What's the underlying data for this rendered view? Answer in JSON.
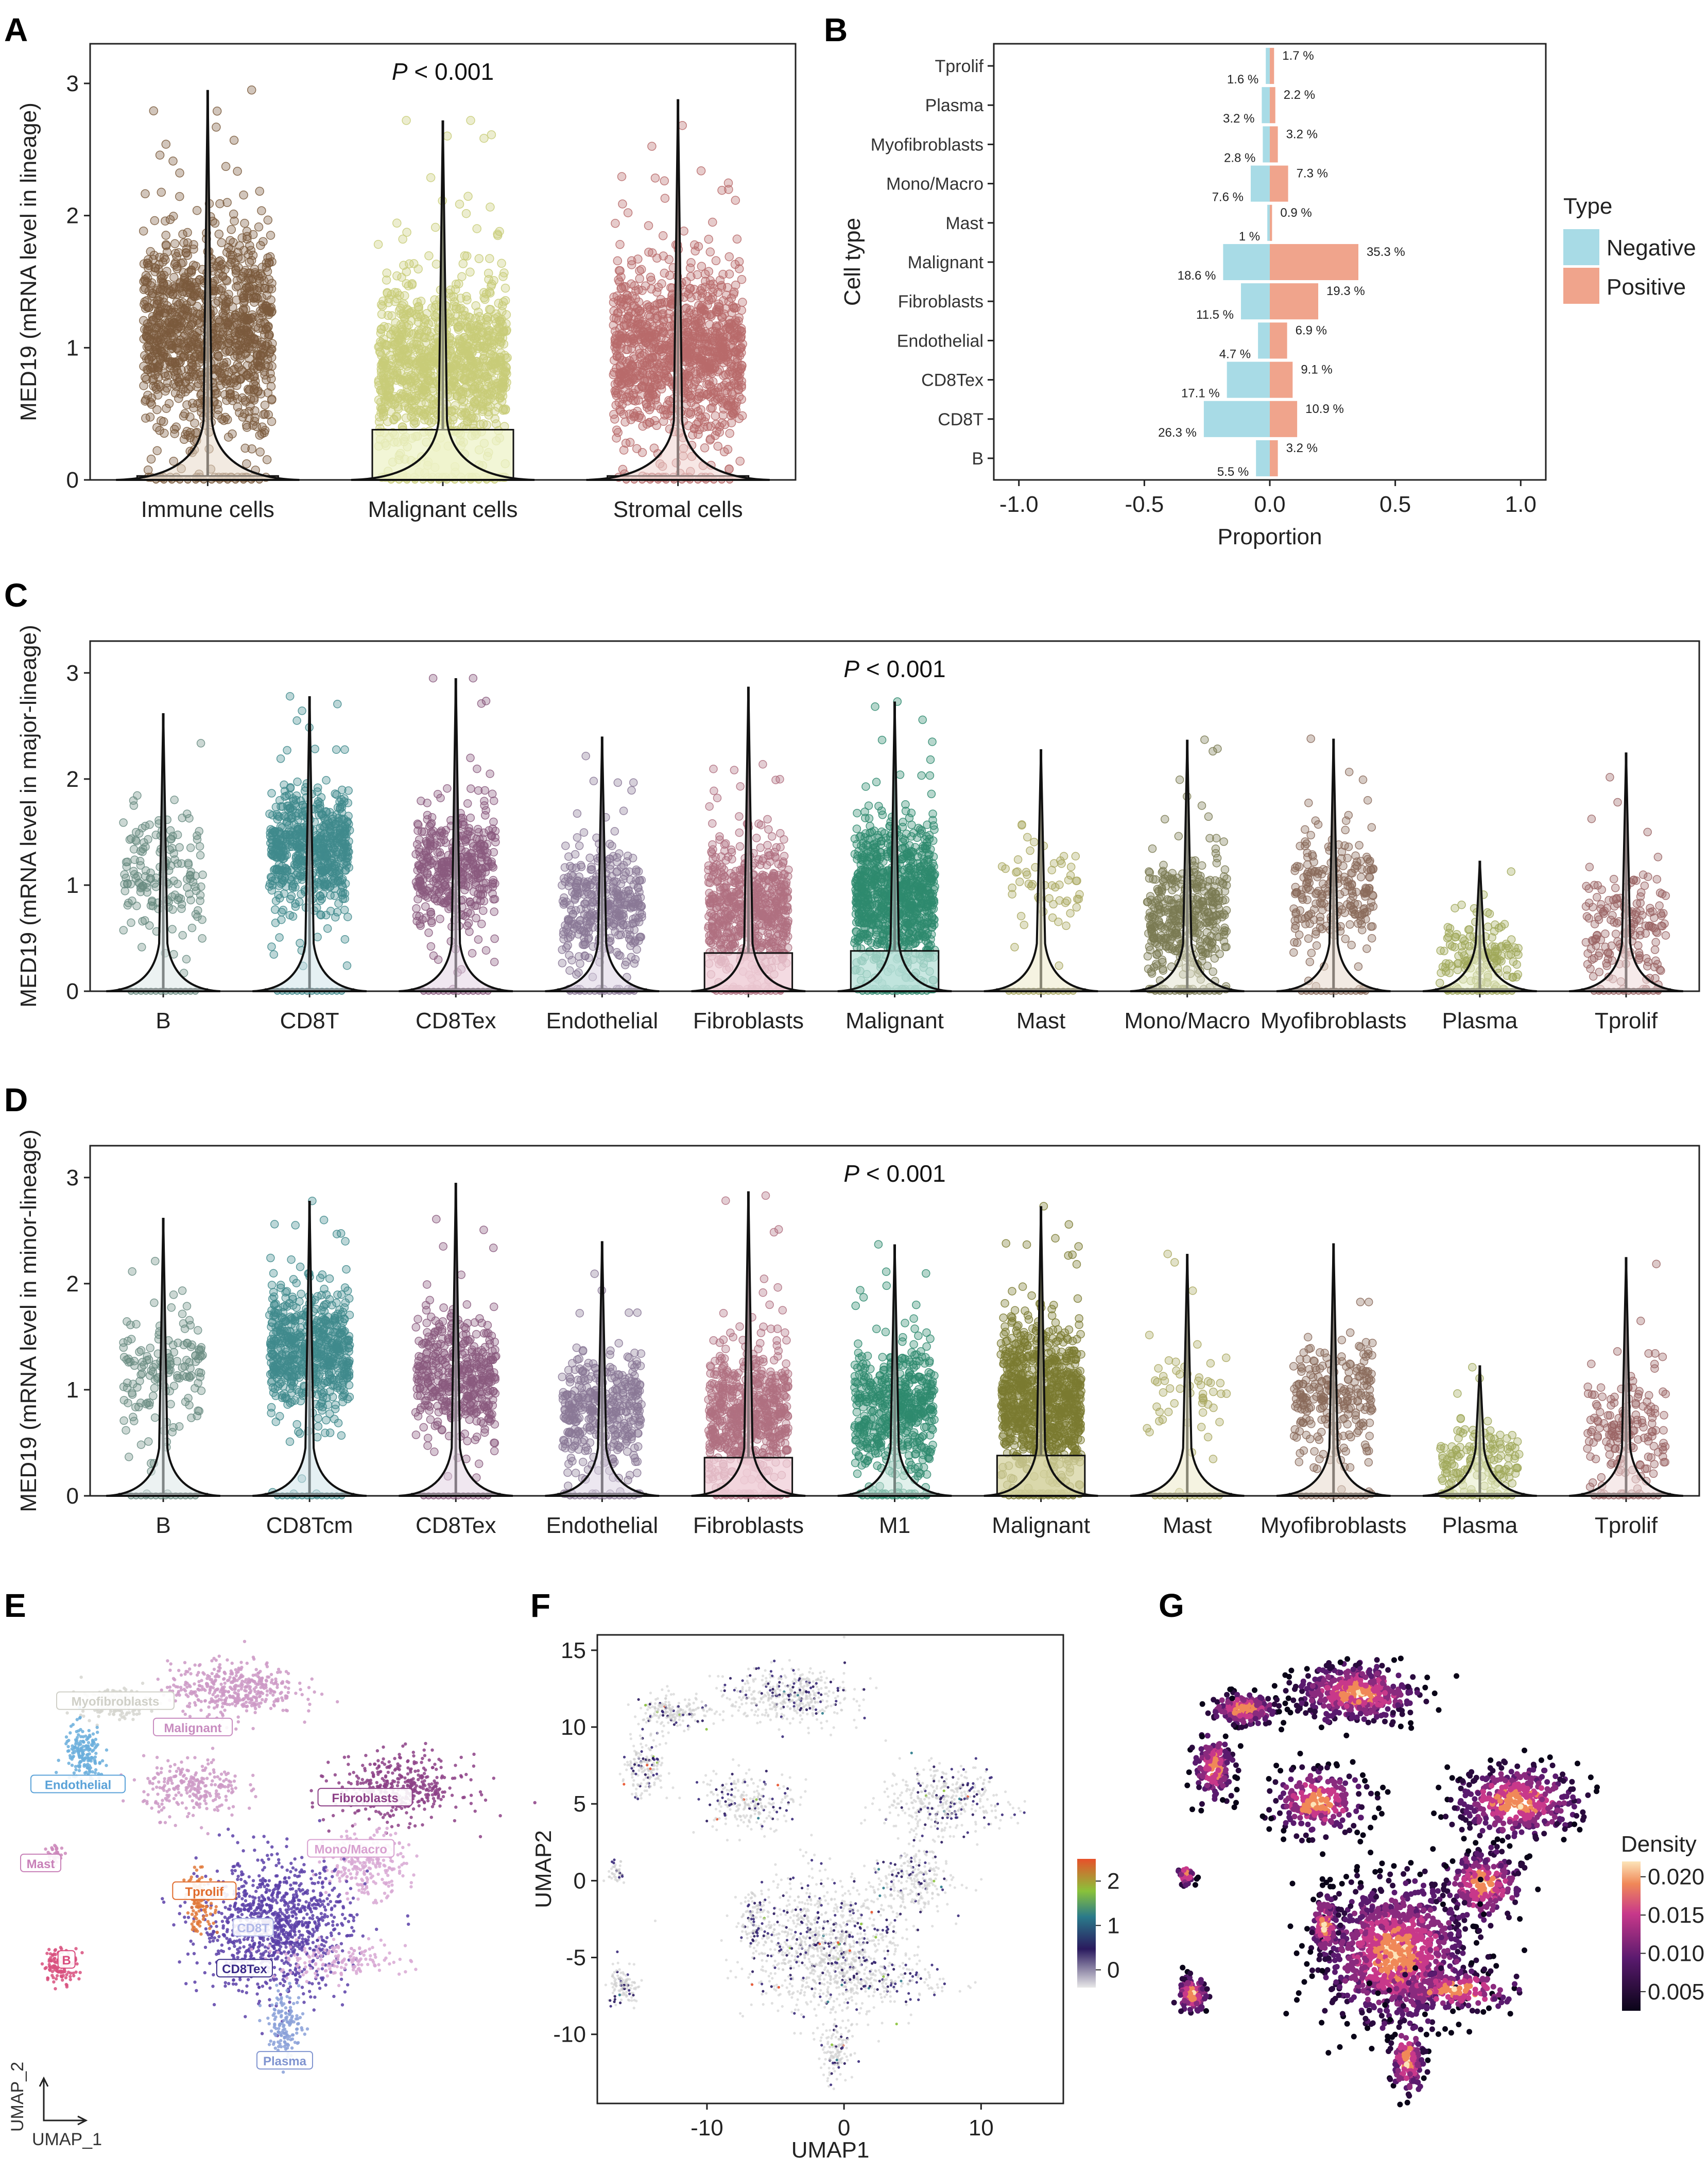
{
  "panels": {
    "A": "A",
    "B": "B",
    "C": "C",
    "D": "D",
    "E": "E",
    "F": "F",
    "G": "G"
  },
  "colors": {
    "negative": "#a8dbe6",
    "positive": "#f0a48c",
    "immune": "#7a5a3c",
    "malignant_lineage": "#c8cc78",
    "stromal": "#b86b6b"
  },
  "chart_data": [
    {
      "id": "A",
      "type": "violin-box-jitter",
      "annotation_prefix": "P",
      "annotation_rest": " < 0.001",
      "ylabel": "MED19 (mRNA level in lineage)",
      "ylim": [
        0,
        3.3
      ],
      "yticks": [
        0,
        1,
        2,
        3
      ],
      "categories": [
        "Immune cells",
        "Malignant cells",
        "Stromal cells"
      ],
      "colors": [
        "#7a5a3c",
        "#c8cc78",
        "#b86b6b"
      ],
      "box_fill": [
        "#e8d8c8",
        "#eef3c8",
        "#f0d4d0"
      ],
      "box_q3": [
        0.03,
        0.38,
        0.03
      ],
      "whisker_max": [
        2.95,
        2.72,
        2.88
      ],
      "cloud_center": [
        1.1,
        0.85,
        0.95
      ],
      "cloud_spread": [
        0.6,
        0.5,
        0.5
      ],
      "points": [
        1100,
        1100,
        1100
      ]
    },
    {
      "id": "B",
      "type": "diverging-bar",
      "xlabel": "Proportion",
      "ylabel": "Cell type",
      "xlim": [
        -1.1,
        1.1
      ],
      "xticks": [
        -1.0,
        -0.5,
        0.0,
        0.5,
        1.0
      ],
      "xtick_labels": [
        "-1.0",
        "-0.5",
        "0.0",
        "0.5",
        "1.0"
      ],
      "legend_title": "Type",
      "legend": [
        "Negative",
        "Positive"
      ],
      "categories": [
        "Tprolif",
        "Plasma",
        "Myofibroblasts",
        "Mono/Macro",
        "Mast",
        "Malignant",
        "Fibroblasts",
        "Endothelial",
        "CD8Tex",
        "CD8T",
        "B"
      ],
      "negative": [
        0.016,
        0.032,
        0.028,
        0.076,
        0.01,
        0.186,
        0.115,
        0.047,
        0.171,
        0.263,
        0.055
      ],
      "positive": [
        0.017,
        0.022,
        0.032,
        0.073,
        0.009,
        0.353,
        0.193,
        0.069,
        0.091,
        0.109,
        0.032
      ],
      "negative_labels": [
        "1.6 %",
        "3.2 %",
        "2.8 %",
        "7.6 %",
        "1 %",
        "18.6 %",
        "11.5 %",
        "4.7 %",
        "17.1 %",
        "26.3 %",
        "5.5 %"
      ],
      "positive_labels": [
        "1.7 %",
        "2.2 %",
        "3.2 %",
        "7.3 %",
        "0.9 %",
        "35.3 %",
        "19.3 %",
        "6.9 %",
        "9.1 %",
        "10.9 %",
        "3.2 %"
      ]
    },
    {
      "id": "C",
      "type": "violin-box-jitter",
      "annotation_prefix": "P",
      "annotation_rest": " < 0.001",
      "ylabel": "MED19 (mRNA level in major-lineage)",
      "ylim": [
        0,
        3.3
      ],
      "yticks": [
        0,
        1,
        2,
        3
      ],
      "categories": [
        "B",
        "CD8T",
        "CD8Tex",
        "Endothelial",
        "Fibroblasts",
        "Malignant",
        "Mast",
        "Mono/Macro",
        "Myofibroblasts",
        "Plasma",
        "Tprolif"
      ],
      "colors": [
        "#6a8c82",
        "#3f8a8c",
        "#8a5a7e",
        "#8a7896",
        "#b07080",
        "#2e8a6e",
        "#aaa860",
        "#7a7a52",
        "#8a6a5a",
        "#a0a85a",
        "#9a6464"
      ],
      "box_fill": [
        "#dde8e8",
        "#cfe3ea",
        "#e3d3e3",
        "#ddd3e3",
        "#f0cfd8",
        "#b8e0d8",
        "#eceac8",
        "#e3e3cf",
        "#e8d8cc",
        "#e8ecc8",
        "#eed8d8"
      ],
      "box_q3": [
        0.02,
        0.02,
        0.02,
        0.02,
        0.36,
        0.38,
        0.02,
        0.02,
        0.02,
        0.02,
        0.02
      ],
      "whisker_max": [
        2.62,
        2.78,
        2.95,
        2.4,
        2.87,
        2.73,
        2.28,
        2.37,
        2.38,
        1.23,
        2.25
      ],
      "cloud_center": [
        1.15,
        1.35,
        1.15,
        0.8,
        0.75,
        0.9,
        1.0,
        0.7,
        0.9,
        0.35,
        0.6
      ],
      "cloud_spread": [
        0.45,
        0.45,
        0.45,
        0.45,
        0.5,
        0.55,
        0.45,
        0.45,
        0.45,
        0.3,
        0.45
      ],
      "points": [
        160,
        620,
        420,
        380,
        620,
        900,
        55,
        420,
        240,
        150,
        170
      ]
    },
    {
      "id": "D",
      "type": "violin-box-jitter",
      "annotation_prefix": "P",
      "annotation_rest": " < 0.001",
      "ylabel": "MED19 (mRNA level in minor-lineage)",
      "ylim": [
        0,
        3.3
      ],
      "yticks": [
        0,
        1,
        2,
        3
      ],
      "categories": [
        "B",
        "CD8Tcm",
        "CD8Tex",
        "Endothelial",
        "Fibroblasts",
        "M1",
        "Malignant",
        "Mast",
        "Myofibroblasts",
        "Plasma",
        "Tprolif"
      ],
      "colors": [
        "#6a8c82",
        "#3f8a8c",
        "#8a5a7e",
        "#8a7896",
        "#b07080",
        "#2e8a6e",
        "#7a7a30",
        "#aaa860",
        "#8a6a5a",
        "#a0a85a",
        "#9a6464"
      ],
      "box_fill": [
        "#dde8e8",
        "#cfe3ea",
        "#e3d3e3",
        "#ddd3e3",
        "#f0cfd8",
        "#c8e6dc",
        "#d6d3a0",
        "#eceac8",
        "#e8d8cc",
        "#e8ecc8",
        "#eed8d8"
      ],
      "box_q3": [
        0.02,
        0.02,
        0.02,
        0.02,
        0.36,
        0.02,
        0.38,
        0.02,
        0.02,
        0.02,
        0.02
      ],
      "whisker_max": [
        2.62,
        2.78,
        2.95,
        2.4,
        2.87,
        2.37,
        2.73,
        2.28,
        2.38,
        1.23,
        2.25
      ],
      "cloud_center": [
        1.15,
        1.35,
        1.15,
        0.8,
        0.75,
        0.8,
        0.9,
        1.0,
        0.9,
        0.35,
        0.6
      ],
      "cloud_spread": [
        0.45,
        0.45,
        0.45,
        0.45,
        0.5,
        0.5,
        0.55,
        0.45,
        0.45,
        0.3,
        0.45
      ],
      "points": [
        160,
        620,
        420,
        380,
        620,
        520,
        900,
        55,
        240,
        150,
        170
      ]
    },
    {
      "id": "E",
      "type": "scatter",
      "xlabel": "UMAP_1",
      "ylabel": "UMAP_2",
      "clusters": [
        {
          "label": "Myofibroblasts",
          "color": "#d6d6d0",
          "cx": -12.4,
          "cy": 11.0,
          "sx": 1.2,
          "sy": 0.5,
          "n": 200
        },
        {
          "label": "Malignant",
          "color": "#cc99c6",
          "cx": -4.2,
          "cy": 12.0,
          "sx": 2.2,
          "sy": 0.9,
          "n": 450
        },
        {
          "label": "Malignant",
          "color": "#cc99c6",
          "cx": -7.0,
          "cy": 5.2,
          "sx": 1.7,
          "sy": 1.0,
          "n": 250
        },
        {
          "label": "Endothelial",
          "color": "#6aaedc",
          "cx": -14.6,
          "cy": 7.4,
          "sx": 0.7,
          "sy": 1.0,
          "n": 180
        },
        {
          "label": "Fibroblasts",
          "color": "#8c3f86",
          "cx": 7.4,
          "cy": 5.2,
          "sx": 2.2,
          "sy": 1.1,
          "n": 420
        },
        {
          "label": "Mono/Macro",
          "color": "#d8a8d4",
          "cx": 5.0,
          "cy": 0.0,
          "sx": 1.4,
          "sy": 1.1,
          "n": 260
        },
        {
          "label": "Mast",
          "color": "#cc88bb",
          "cx": -16.6,
          "cy": 0.6,
          "sx": 0.3,
          "sy": 0.35,
          "n": 40
        },
        {
          "label": "B",
          "color": "#d8507e",
          "cx": -16.2,
          "cy": -6.9,
          "sx": 0.6,
          "sy": 0.6,
          "n": 120
        },
        {
          "label": "CD8T",
          "color": "#5b3fa8",
          "cx": -1.3,
          "cy": -4.3,
          "sx": 2.6,
          "sy": 2.2,
          "n": 1100
        },
        {
          "label": "Tprolif",
          "color": "#e07838",
          "cx": -6.5,
          "cy": -2.6,
          "sx": 0.5,
          "sy": 1.0,
          "n": 120
        },
        {
          "label": "Plasma",
          "color": "#8aa0d8",
          "cx": -0.5,
          "cy": -11.0,
          "sx": 0.6,
          "sy": 1.1,
          "n": 140
        },
        {
          "label": "Mono/Macro",
          "color": "#d8a8d4",
          "cx": 3.0,
          "cy": -6.6,
          "sx": 2.5,
          "sy": 0.6,
          "n": 160
        }
      ],
      "text_labels": [
        {
          "text": "Myofibroblasts",
          "color": "#d0d0c8",
          "x": -12.4,
          "y": 11.0
        },
        {
          "text": "Malignant",
          "color": "#c88cc0",
          "x": -7.0,
          "y": 9.2
        },
        {
          "text": "Endothelial",
          "color": "#5aa2d8",
          "x": -15.0,
          "y": 5.3
        },
        {
          "text": "Fibroblasts",
          "color": "#8c3f86",
          "x": 5.0,
          "y": 4.4
        },
        {
          "text": "Mono/Macro",
          "color": "#d8a0d0",
          "x": 4.0,
          "y": 0.9
        },
        {
          "text": "Mast",
          "color": "#c880b8",
          "x": -17.6,
          "y": -0.1
        },
        {
          "text": "Tprolif",
          "color": "#e06a2a",
          "x": -6.2,
          "y": -2.0
        },
        {
          "text": "B",
          "color": "#d84a7c",
          "x": -15.8,
          "y": -6.7
        },
        {
          "text": "CD8T",
          "color": "#b0b8e8",
          "x": -2.8,
          "y": -4.5
        },
        {
          "text": "CD8Tex",
          "color": "#3a2a88",
          "x": -3.4,
          "y": -7.3
        },
        {
          "text": "Plasma",
          "color": "#8094d0",
          "x": -0.6,
          "y": -13.6
        }
      ]
    },
    {
      "id": "F",
      "type": "scatter",
      "xlabel": "UMAP1",
      "ylabel": "UMAP2",
      "xlim": [
        -18,
        16
      ],
      "ylim": [
        -14.5,
        16
      ],
      "xticks": [
        -10,
        0,
        10
      ],
      "yticks": [
        -10,
        -5,
        0,
        5,
        10,
        15
      ],
      "colorbar_ticks": [
        0,
        1,
        2
      ]
    },
    {
      "id": "G",
      "type": "scatter",
      "legend_title": "Density",
      "colorbar_ticks": [
        0.005,
        0.01,
        0.015,
        0.02
      ],
      "colorbar_tick_labels": [
        "0.005",
        "0.010",
        "0.015",
        "0.020"
      ]
    }
  ]
}
